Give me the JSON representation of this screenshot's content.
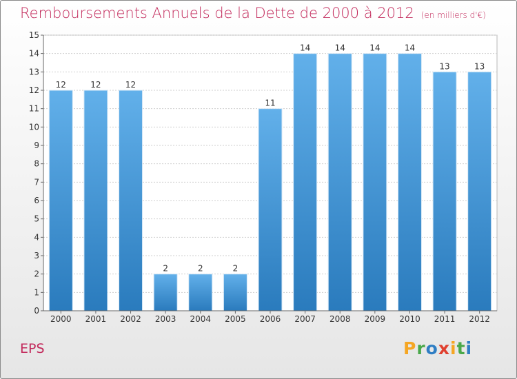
{
  "title": "Remboursements Annuels de la Dette de 2000 à 2012",
  "unit_note": "(en milliers d'€)",
  "entity": "EPS",
  "logo": {
    "letters": [
      "P",
      "r",
      "o",
      "x",
      "i",
      "t",
      "i"
    ],
    "colors": [
      "#f5a623",
      "#4aa84a",
      "#2f7ec4",
      "#e0402f",
      "#f5a623",
      "#4aa84a",
      "#2f7ec4"
    ]
  },
  "colors": {
    "bar_top": "#62b0ea",
    "bar_bottom": "#2a7bbd",
    "grid": "#cfcfcf",
    "title": "#c2285a"
  },
  "chart_data": {
    "type": "bar",
    "title": "Remboursements Annuels de la Dette de 2000 à 2012",
    "ylabel": "",
    "xlabel": "",
    "categories": [
      "2000",
      "2001",
      "2002",
      "2003",
      "2004",
      "2005",
      "2006",
      "2007",
      "2008",
      "2009",
      "2010",
      "2011",
      "2012"
    ],
    "values": [
      12,
      12,
      12,
      2,
      2,
      2,
      11,
      14,
      14,
      14,
      14,
      13,
      13
    ],
    "ylim": [
      0,
      15
    ],
    "yticks": [
      0,
      1,
      2,
      3,
      4,
      5,
      6,
      7,
      8,
      9,
      10,
      11,
      12,
      13,
      14,
      15
    ],
    "grid": true,
    "data_labels": true
  }
}
